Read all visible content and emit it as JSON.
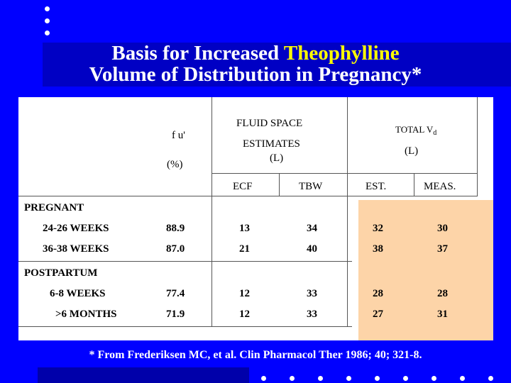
{
  "title": {
    "line1_prefix": "Basis for Increased ",
    "line1_accent": "Theophylline",
    "line2": "Volume of Distribution in Pregnancy*"
  },
  "table": {
    "header": {
      "fu_label": "f u",
      "fu_unit": "(%)",
      "fluid_space": "FLUID SPACE",
      "estimates": "ESTIMATES",
      "estimates_unit": "(L)",
      "total_vd": "TOTAL V",
      "total_vd_sub": "d",
      "total_unit": "(L)",
      "col_ecf": "ECF",
      "col_tbw": "TBW",
      "col_est": "EST.",
      "col_meas": "MEAS."
    },
    "groups": [
      {
        "label": "PREGNANT",
        "rows": [
          {
            "period": "24-26 WEEKS",
            "fu": "88.9",
            "ecf": "13",
            "tbw": "34",
            "est": "32",
            "meas": "30"
          },
          {
            "period": "36-38 WEEKS",
            "fu": "87.0",
            "ecf": "21",
            "tbw": "40",
            "est": "38",
            "meas": "37"
          }
        ]
      },
      {
        "label": "POSTPARTUM",
        "rows": [
          {
            "period": "6-8 WEEKS",
            "fu": "77.4",
            "ecf": "12",
            "tbw": "33",
            "est": "28",
            "meas": "28"
          },
          {
            "period": ">6 MONTHS",
            "fu": "71.9",
            "ecf": "12",
            "tbw": "33",
            "est": "27",
            "meas": "31"
          }
        ]
      }
    ]
  },
  "footnote": "* From Frederiksen MC, et al. Clin Pharmacol Ther 1986; 40; 321-8.",
  "colors": {
    "background": "#0000ff",
    "title_accent": "#ffff00",
    "highlight": "#fdd4a8"
  }
}
